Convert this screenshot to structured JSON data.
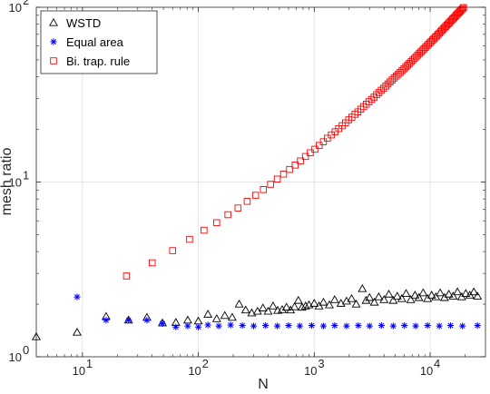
{
  "chart_data": {
    "type": "scatter",
    "xscale": "log",
    "yscale": "log",
    "xlim": [
      4,
      30000
    ],
    "ylim": [
      1,
      100
    ],
    "xlabel": "N",
    "ylabel": "mesh ratio",
    "grid": true,
    "legend_position": "top-left",
    "x_ticks": [
      {
        "value": 10,
        "base": "10",
        "exp": "1"
      },
      {
        "value": 100,
        "base": "10",
        "exp": "2"
      },
      {
        "value": 1000,
        "base": "10",
        "exp": "3"
      },
      {
        "value": 10000,
        "base": "10",
        "exp": "4"
      }
    ],
    "y_ticks": [
      {
        "value": 1,
        "base": "10",
        "exp": "0"
      },
      {
        "value": 10,
        "base": "10",
        "exp": "1"
      },
      {
        "value": 100,
        "base": "10",
        "exp": "2"
      }
    ],
    "series": [
      {
        "name": "WSTD",
        "marker": "triangle",
        "color": "#000000",
        "points": [
          [
            4,
            1.3
          ],
          [
            9,
            1.38
          ],
          [
            16,
            1.7
          ],
          [
            25,
            1.62
          ],
          [
            36,
            1.68
          ],
          [
            49,
            1.56
          ],
          [
            64,
            1.57
          ],
          [
            81,
            1.62
          ],
          [
            100,
            1.6
          ],
          [
            121,
            1.75
          ],
          [
            144,
            1.65
          ],
          [
            169,
            1.72
          ],
          [
            196,
            1.68
          ],
          [
            225,
            2.0
          ],
          [
            256,
            1.85
          ],
          [
            289,
            1.78
          ],
          [
            324,
            1.82
          ],
          [
            361,
            1.9
          ],
          [
            400,
            1.82
          ],
          [
            441,
            1.95
          ],
          [
            484,
            1.84
          ],
          [
            529,
            1.86
          ],
          [
            576,
            1.92
          ],
          [
            625,
            1.85
          ],
          [
            676,
            1.93
          ],
          [
            729,
            2.1
          ],
          [
            784,
            1.92
          ],
          [
            841,
            1.95
          ],
          [
            900,
            1.98
          ],
          [
            1000,
            2.02
          ],
          [
            1100,
            1.95
          ],
          [
            1200,
            2.05
          ],
          [
            1350,
            1.98
          ],
          [
            1500,
            2.12
          ],
          [
            1700,
            2.02
          ],
          [
            1900,
            2.08
          ],
          [
            2100,
            2.15
          ],
          [
            2300,
            2.0
          ],
          [
            2600,
            2.45
          ],
          [
            2800,
            2.1
          ],
          [
            3000,
            2.18
          ],
          [
            3300,
            2.05
          ],
          [
            3600,
            2.2
          ],
          [
            4000,
            2.12
          ],
          [
            4400,
            2.28
          ],
          [
            4800,
            2.1
          ],
          [
            5200,
            2.22
          ],
          [
            5700,
            2.15
          ],
          [
            6200,
            2.3
          ],
          [
            6800,
            2.12
          ],
          [
            7400,
            2.25
          ],
          [
            8000,
            2.18
          ],
          [
            8700,
            2.32
          ],
          [
            9500,
            2.15
          ],
          [
            10300,
            2.25
          ],
          [
            11200,
            2.2
          ],
          [
            12200,
            2.32
          ],
          [
            13300,
            2.18
          ],
          [
            14500,
            2.28
          ],
          [
            15800,
            2.22
          ],
          [
            17200,
            2.35
          ],
          [
            18700,
            2.2
          ],
          [
            20300,
            2.3
          ],
          [
            22000,
            2.25
          ],
          [
            23800,
            2.35
          ],
          [
            25600,
            2.22
          ]
        ]
      },
      {
        "name": "Equal area",
        "marker": "asterisk",
        "color": "#0000ff",
        "points": [
          [
            9,
            2.2
          ],
          [
            16,
            1.62
          ],
          [
            25,
            1.62
          ],
          [
            36,
            1.62
          ],
          [
            49,
            1.55
          ],
          [
            64,
            1.48
          ],
          [
            81,
            1.5
          ],
          [
            100,
            1.48
          ],
          [
            121,
            1.52
          ],
          [
            150,
            1.5
          ],
          [
            190,
            1.52
          ],
          [
            240,
            1.51
          ],
          [
            300,
            1.5
          ],
          [
            380,
            1.51
          ],
          [
            480,
            1.5
          ],
          [
            600,
            1.51
          ],
          [
            750,
            1.5
          ],
          [
            950,
            1.51
          ],
          [
            1200,
            1.5
          ],
          [
            1500,
            1.51
          ],
          [
            1900,
            1.5
          ],
          [
            2400,
            1.51
          ],
          [
            3000,
            1.5
          ],
          [
            3800,
            1.51
          ],
          [
            4800,
            1.5
          ],
          [
            6000,
            1.51
          ],
          [
            7500,
            1.5
          ],
          [
            9500,
            1.51
          ],
          [
            12000,
            1.5
          ],
          [
            15000,
            1.51
          ],
          [
            19000,
            1.5
          ],
          [
            25600,
            1.51
          ]
        ]
      },
      {
        "name": "Bi. trap. rule",
        "marker": "square",
        "color": "#ff0000",
        "points": [
          [
            24,
            2.9
          ],
          [
            40,
            3.45
          ],
          [
            60,
            4.05
          ],
          [
            84,
            4.7
          ],
          [
            112,
            5.3
          ],
          [
            144,
            5.85
          ],
          [
            180,
            6.5
          ],
          [
            220,
            7.1
          ],
          [
            264,
            7.75
          ],
          [
            312,
            8.4
          ],
          [
            364,
            9.05
          ],
          [
            420,
            9.7
          ],
          [
            480,
            10.4
          ],
          [
            544,
            11.1
          ],
          [
            612,
            11.8
          ],
          [
            684,
            12.5
          ],
          [
            760,
            13.2
          ],
          [
            840,
            14.0
          ],
          [
            924,
            14.7
          ],
          [
            1012,
            15.4
          ],
          [
            1104,
            16.2
          ],
          [
            1200,
            17.0
          ],
          [
            1300,
            17.8
          ],
          [
            1404,
            18.6
          ],
          [
            1512,
            19.4
          ],
          [
            1624,
            20.2
          ],
          [
            1740,
            21.0
          ],
          [
            1860,
            21.8
          ],
          [
            1984,
            22.7
          ],
          [
            2112,
            23.5
          ],
          [
            2244,
            24.4
          ],
          [
            2380,
            25.2
          ],
          [
            2520,
            26.1
          ],
          [
            2664,
            27.0
          ],
          [
            2812,
            27.9
          ],
          [
            2964,
            28.8
          ],
          [
            3120,
            29.7
          ],
          [
            3280,
            30.6
          ],
          [
            3444,
            31.6
          ],
          [
            3612,
            32.5
          ],
          [
            3784,
            33.5
          ],
          [
            3960,
            34.4
          ],
          [
            4140,
            35.4
          ],
          [
            4324,
            36.4
          ],
          [
            4512,
            37.4
          ],
          [
            4704,
            38.4
          ],
          [
            4900,
            39.4
          ],
          [
            5100,
            40.4
          ],
          [
            5304,
            41.4
          ],
          [
            5512,
            42.4
          ],
          [
            5724,
            43.5
          ],
          [
            5940,
            44.5
          ],
          [
            6160,
            45.6
          ],
          [
            6384,
            46.6
          ],
          [
            6612,
            47.7
          ],
          [
            6844,
            48.8
          ],
          [
            7080,
            49.9
          ],
          [
            7320,
            51.0
          ],
          [
            7564,
            52.1
          ],
          [
            7812,
            53.2
          ],
          [
            8064,
            54.4
          ],
          [
            8320,
            55.5
          ],
          [
            8580,
            56.7
          ],
          [
            8844,
            57.8
          ],
          [
            9112,
            59.0
          ],
          [
            9384,
            60.2
          ],
          [
            9660,
            61.4
          ],
          [
            9940,
            62.6
          ],
          [
            10224,
            63.8
          ],
          [
            10512,
            65.0
          ],
          [
            10804,
            66.2
          ],
          [
            11100,
            67.5
          ],
          [
            11400,
            68.7
          ],
          [
            11704,
            70.0
          ],
          [
            12012,
            71.2
          ],
          [
            12324,
            72.5
          ],
          [
            12640,
            73.8
          ],
          [
            12960,
            75.1
          ],
          [
            13284,
            76.4
          ],
          [
            13612,
            77.7
          ],
          [
            13944,
            79.0
          ],
          [
            14280,
            80.3
          ],
          [
            14620,
            81.6
          ],
          [
            14964,
            83.0
          ],
          [
            15312,
            84.3
          ],
          [
            15664,
            85.7
          ],
          [
            16020,
            87.0
          ],
          [
            16380,
            88.4
          ],
          [
            16744,
            89.8
          ],
          [
            17112,
            91.2
          ],
          [
            17484,
            92.6
          ],
          [
            17860,
            94.0
          ],
          [
            18240,
            95.4
          ],
          [
            18624,
            96.8
          ],
          [
            19012,
            98.2
          ],
          [
            19404,
            99.6
          ],
          [
            19800,
            101.0
          ],
          [
            20200,
            102.5
          ],
          [
            20604,
            103.9
          ],
          [
            21012,
            105.4
          ],
          [
            21424,
            106.8
          ],
          [
            21840,
            108.3
          ],
          [
            22260,
            109.8
          ],
          [
            22684,
            111.3
          ],
          [
            23112,
            112.8
          ],
          [
            23544,
            114.3
          ],
          [
            23980,
            115.8
          ],
          [
            24420,
            117.3
          ],
          [
            24864,
            118.8
          ],
          [
            25312,
            120.4
          ],
          [
            25764,
            121.9
          ]
        ]
      }
    ]
  }
}
